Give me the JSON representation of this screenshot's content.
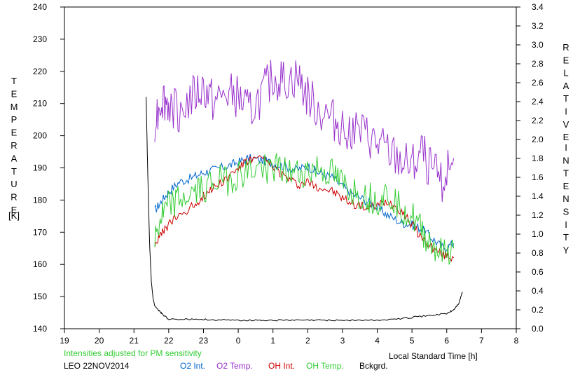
{
  "chart_data": {
    "type": "line",
    "left_axis_label": "TEMPERATURE",
    "left_axis_unit": "[K]",
    "right_axis_label_line1": "RELATIVE",
    "right_axis_label_line2": "INTENSITY",
    "x_axis_label": "Local Standard Time [h]",
    "note": "Intensities adjusted for PM sensitivity",
    "station_date": "LEO 22NOV2014",
    "x_tick_labels": [
      "19",
      "20",
      "21",
      "22",
      "23",
      "0",
      "1",
      "2",
      "3",
      "4",
      "5",
      "6",
      "7",
      "8"
    ],
    "y_left_ticks": [
      140,
      150,
      160,
      170,
      180,
      190,
      200,
      210,
      220,
      230,
      240
    ],
    "y_right_ticks": [
      "0.0",
      "0.2",
      "0.4",
      "0.6",
      "0.8",
      "1.0",
      "1.2",
      "1.4",
      "1.6",
      "1.8",
      "2.0",
      "2.2",
      "2.4",
      "2.6",
      "2.8",
      "3.0",
      "3.2",
      "3.4"
    ],
    "xlim": [
      19,
      32
    ],
    "ylim_left": [
      140,
      240
    ],
    "ylim_right": [
      0.0,
      3.4
    ],
    "grid": false,
    "series": [
      {
        "name": "O2 Int.",
        "axis": "right",
        "color": "#0066cc",
        "x": [
          21.6,
          21.8,
          22.0,
          22.3,
          22.7,
          23.0,
          23.3,
          23.7,
          24.0,
          24.3,
          24.7,
          25.0,
          25.3,
          25.7,
          26.0,
          26.3,
          26.7,
          27.0,
          27.3,
          27.7,
          28.0,
          28.3,
          28.7,
          29.0,
          29.3,
          29.6,
          29.9,
          30.2
        ],
        "y": [
          1.25,
          1.35,
          1.45,
          1.55,
          1.6,
          1.65,
          1.68,
          1.72,
          1.76,
          1.8,
          1.78,
          1.75,
          1.72,
          1.68,
          1.72,
          1.65,
          1.6,
          1.5,
          1.42,
          1.35,
          1.28,
          1.2,
          1.12,
          1.1,
          1.05,
          0.95,
          0.85,
          0.9
        ]
      },
      {
        "name": "O2 Temp.",
        "axis": "left",
        "color": "#9933cc",
        "x": [
          21.6,
          21.8,
          22.0,
          22.3,
          22.7,
          23.0,
          23.3,
          23.7,
          24.0,
          24.3,
          24.7,
          25.0,
          25.3,
          25.7,
          26.0,
          26.3,
          26.7,
          27.0,
          27.3,
          27.7,
          28.0,
          28.3,
          28.7,
          29.0,
          29.3,
          29.6,
          29.9,
          30.2
        ],
        "y": [
          205,
          212,
          210,
          208,
          212,
          215,
          210,
          213,
          212,
          207,
          213,
          218,
          217,
          218,
          212,
          208,
          205,
          203,
          202,
          200,
          197,
          195,
          192,
          190,
          195,
          188,
          186,
          193
        ]
      },
      {
        "name": "OH Int.",
        "axis": "right",
        "color": "#cc0000",
        "x": [
          21.6,
          21.8,
          22.0,
          22.3,
          22.7,
          23.0,
          23.3,
          23.7,
          24.0,
          24.3,
          24.7,
          25.0,
          25.3,
          25.7,
          26.0,
          26.3,
          26.7,
          27.0,
          27.3,
          27.7,
          28.0,
          28.3,
          28.7,
          29.0,
          29.3,
          29.6,
          29.9,
          30.2
        ],
        "y": [
          0.9,
          1.0,
          1.1,
          1.2,
          1.3,
          1.4,
          1.5,
          1.6,
          1.7,
          1.78,
          1.8,
          1.72,
          1.62,
          1.52,
          1.55,
          1.5,
          1.45,
          1.38,
          1.32,
          1.28,
          1.3,
          1.35,
          1.25,
          1.1,
          0.95,
          0.85,
          0.78,
          0.75
        ]
      },
      {
        "name": "OH Temp.",
        "axis": "left",
        "color": "#33cc33",
        "x": [
          21.6,
          21.8,
          22.0,
          22.3,
          22.7,
          23.0,
          23.3,
          23.7,
          24.0,
          24.3,
          24.7,
          25.0,
          25.3,
          25.7,
          26.0,
          26.3,
          26.7,
          27.0,
          27.3,
          27.7,
          28.0,
          28.3,
          28.7,
          29.0,
          29.3,
          29.6,
          29.9,
          30.2
        ],
        "y": [
          168,
          175,
          178,
          180,
          182,
          184,
          186,
          186,
          188,
          189,
          190,
          190,
          189,
          188,
          189,
          190,
          188,
          185,
          183,
          181,
          180,
          182,
          178,
          175,
          170,
          166,
          163,
          165
        ]
      },
      {
        "name": "Bckgrd.",
        "axis": "right",
        "color": "#000000",
        "x": [
          21.35,
          21.4,
          21.45,
          21.5,
          21.55,
          21.6,
          21.7,
          21.8,
          22.0,
          22.5,
          23.0,
          23.5,
          24.0,
          24.5,
          25.0,
          25.5,
          26.0,
          26.5,
          27.0,
          27.5,
          28.0,
          28.5,
          29.0,
          29.5,
          30.0,
          30.2,
          30.35,
          30.45
        ],
        "y": [
          2.45,
          1.6,
          0.9,
          0.5,
          0.32,
          0.24,
          0.2,
          0.16,
          0.1,
          0.1,
          0.1,
          0.09,
          0.09,
          0.09,
          0.09,
          0.09,
          0.09,
          0.09,
          0.09,
          0.09,
          0.09,
          0.1,
          0.12,
          0.14,
          0.16,
          0.2,
          0.27,
          0.39
        ]
      }
    ]
  }
}
